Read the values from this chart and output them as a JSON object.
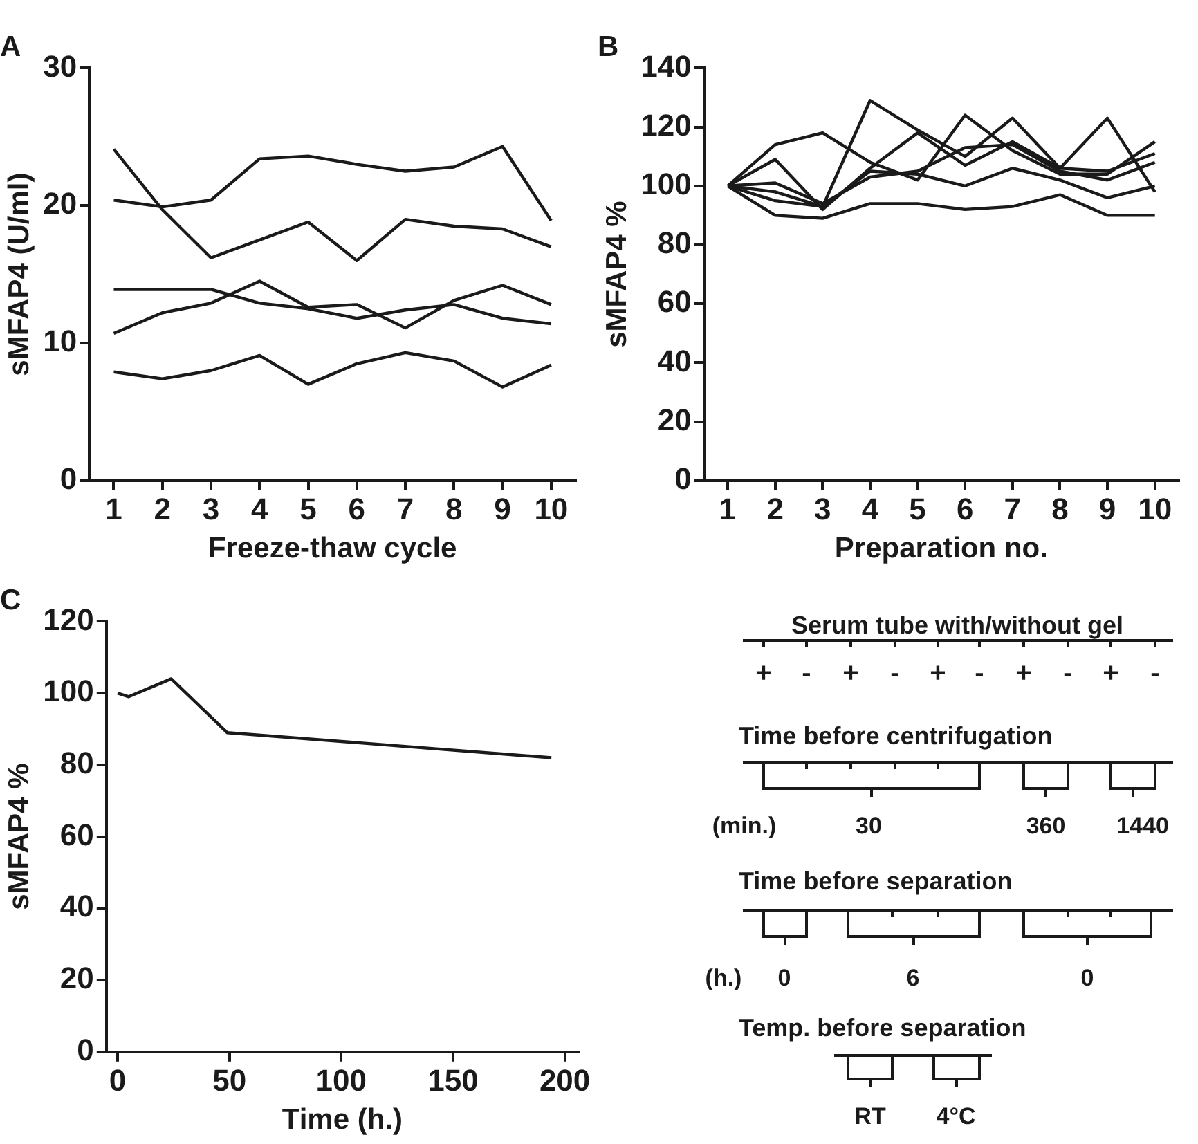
{
  "chart_data": [
    {
      "type": "line",
      "title": "A",
      "xlabel": "Freeze-thaw cycle",
      "ylabel": "sMFAP4 (U/ml)",
      "categories": [
        "1",
        "2",
        "3",
        "4",
        "5",
        "6",
        "7",
        "8",
        "9",
        "10"
      ],
      "ylim": [
        0,
        30
      ],
      "yticks": [
        0,
        10,
        20,
        30
      ],
      "grid": false,
      "marker": "none",
      "line_style": "solid",
      "series": [
        {
          "color": "#1a1a1a",
          "values": [
            24.1,
            19.7,
            16.2,
            17.5,
            18.8,
            16.0,
            19.0,
            18.5,
            18.3,
            17.0
          ]
        },
        {
          "color": "#1a1a1a",
          "values": [
            20.4,
            19.9,
            20.4,
            23.4,
            23.6,
            23.0,
            22.5,
            22.8,
            24.3,
            18.9
          ]
        },
        {
          "color": "#1a1a1a",
          "values": [
            13.9,
            13.9,
            13.9,
            12.9,
            12.5,
            11.8,
            12.4,
            12.8,
            11.8,
            11.4
          ]
        },
        {
          "color": "#1a1a1a",
          "values": [
            10.7,
            12.2,
            12.9,
            14.5,
            12.6,
            12.8,
            11.1,
            13.1,
            14.2,
            12.8
          ]
        },
        {
          "color": "#1a1a1a",
          "values": [
            7.9,
            7.4,
            8.0,
            9.1,
            7.0,
            8.5,
            9.3,
            8.7,
            6.8,
            8.4
          ]
        }
      ]
    },
    {
      "type": "line",
      "title": "B",
      "xlabel": "Preparation no.",
      "ylabel": "sMFAP4 %",
      "categories": [
        "1",
        "2",
        "3",
        "4",
        "5",
        "6",
        "7",
        "8",
        "9",
        "10"
      ],
      "ylim": [
        0,
        140
      ],
      "yticks": [
        0,
        20,
        40,
        60,
        80,
        100,
        120,
        140
      ],
      "grid": false,
      "marker": "none",
      "line_style": "solid",
      "series": [
        {
          "color": "#1a1a1a",
          "values": [
            100,
            90,
            89,
            94,
            94,
            92,
            93,
            97,
            90,
            90
          ]
        },
        {
          "color": "#1a1a1a",
          "values": [
            100,
            95,
            93,
            105,
            104,
            100,
            106,
            102,
            96,
            100
          ]
        },
        {
          "color": "#1a1a1a",
          "values": [
            100,
            101,
            94,
            103,
            105,
            113,
            114,
            105,
            102,
            108
          ]
        },
        {
          "color": "#1a1a1a",
          "values": [
            100,
            109,
            92,
            106,
            118,
            107,
            115,
            106,
            105,
            111
          ]
        },
        {
          "color": "#1a1a1a",
          "values": [
            100,
            114,
            118,
            108,
            102,
            124,
            112,
            104,
            104,
            115
          ]
        },
        {
          "color": "#1a1a1a",
          "values": [
            100,
            98,
            93,
            129,
            119,
            110,
            123,
            106,
            123,
            98
          ]
        }
      ]
    },
    {
      "type": "line",
      "title": "C",
      "xlabel": "Time (h.)",
      "ylabel": "sMFAP4 %",
      "x": [
        0,
        5,
        24,
        49,
        194
      ],
      "values": [
        100,
        99,
        104,
        89,
        82
      ],
      "color": "#1a1a1a",
      "xlim": [
        -5,
        206
      ],
      "xticks": [
        0,
        50,
        100,
        150,
        200
      ],
      "ylim": [
        0,
        120
      ],
      "yticks": [
        0,
        20,
        40,
        60,
        80,
        100,
        120
      ],
      "grid": false,
      "marker": "none",
      "line_style": "solid"
    },
    {
      "type": "other",
      "annotations": [
        "Serum tube with/without gel",
        "+",
        "-",
        "+",
        "-",
        "+",
        "-",
        "+",
        "-",
        "+",
        "-",
        "Time before centrifugation",
        "(min.)",
        "30",
        "360",
        "1440",
        "Time before separation",
        "(h.)",
        "0",
        "6",
        "0",
        "Temp. before separation",
        "RT",
        "4°C"
      ]
    }
  ]
}
